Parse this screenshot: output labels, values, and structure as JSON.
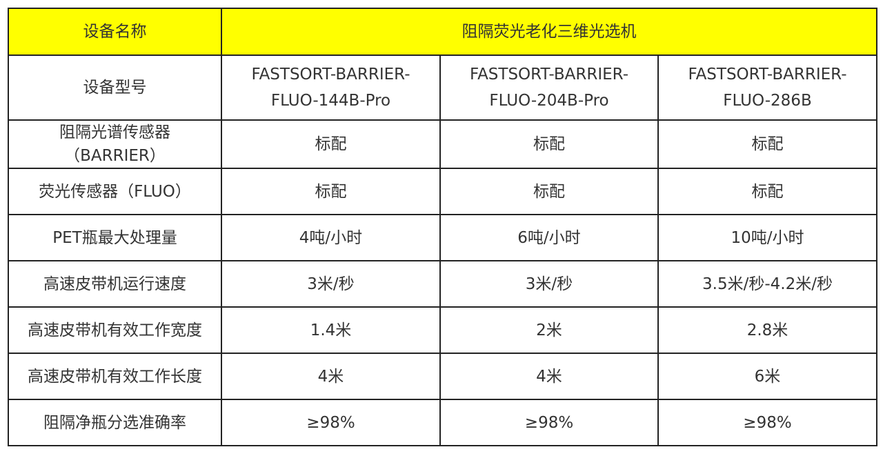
{
  "header": {
    "label": "设备名称",
    "value": "阻隔荧光老化三维光选机",
    "background": "#ffff00"
  },
  "rows": [
    {
      "label": "设备型号",
      "values": [
        "FASTSORT-BARRIER-FLUO-144B-Pro",
        "FASTSORT-BARRIER-FLUO-204B-Pro",
        "FASTSORT-BARRIER-FLUO-286B"
      ]
    },
    {
      "label": "阻隔光谱传感器（BARRIER）",
      "values": [
        "标配",
        "标配",
        "标配"
      ]
    },
    {
      "label": "荧光传感器（FLUO）",
      "values": [
        "标配",
        "标配",
        "标配"
      ]
    },
    {
      "label": "PET瓶最大处理量",
      "values": [
        "4吨/小时",
        "6吨/小时",
        "10吨/小时"
      ]
    },
    {
      "label": "高速皮带机运行速度",
      "values": [
        "3米/秒",
        "3米/秒",
        "3.5米/秒-4.2米/秒"
      ]
    },
    {
      "label": "高速皮带机有效工作宽度",
      "values": [
        "1.4米",
        "2米",
        "2.8米"
      ]
    },
    {
      "label": "高速皮带机有效工作长度",
      "values": [
        "4米",
        "4米",
        "6米"
      ]
    },
    {
      "label": "阻隔净瓶分选准确率",
      "values": [
        "≥98%",
        "≥98%",
        "≥98%"
      ]
    }
  ]
}
